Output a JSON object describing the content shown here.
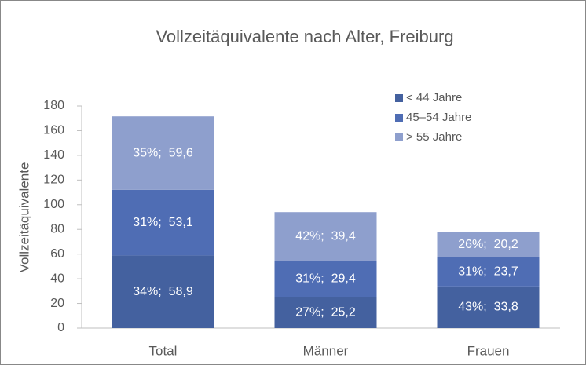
{
  "chart_data": {
    "type": "stacked_bar",
    "title": "Vollzeitäquivalente nach Alter, Freiburg",
    "y_label": "Vollzeitäquivalente",
    "categories": [
      "Total",
      "Männer",
      "Frauen"
    ],
    "series": [
      {
        "name": "< 44 Jahre",
        "color": "#44619f",
        "values": [
          58.9,
          25.2,
          33.8
        ],
        "value_labels": [
          "34%;  58,9",
          "27%;  25,2",
          "43%;  33,8"
        ]
      },
      {
        "name": "45–54 Jahre",
        "color": "#4f6db4",
        "values": [
          53.1,
          29.4,
          23.7
        ],
        "value_labels": [
          "31%;  53,1",
          "31%;  29,4",
          "31%;  23,7"
        ]
      },
      {
        "name": "> 55 Jahre",
        "color": "#8e9fcd",
        "values": [
          59.6,
          39.4,
          20.2
        ],
        "value_labels": [
          "35%;  59,6",
          "42%;  39,4",
          "26%;  20,2"
        ]
      }
    ],
    "ylim": [
      0,
      180
    ],
    "yticks": [
      0,
      20,
      40,
      60,
      80,
      100,
      120,
      140,
      160,
      180
    ],
    "legend": "top-right"
  }
}
